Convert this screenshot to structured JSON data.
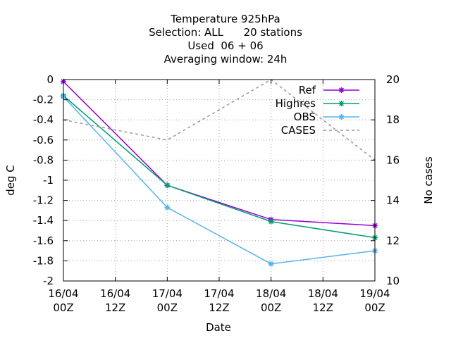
{
  "chart_data": {
    "type": "line",
    "title_lines": [
      "Temperature 925hPa",
      "Selection: ALL      20 stations",
      "Used  06 + 06",
      "Averaging window: 24h"
    ],
    "xlabel": "Date",
    "ylabel": "deg C",
    "y2label": "No cases",
    "x_ticks": [
      [
        "16/04",
        "00Z"
      ],
      [
        "16/04",
        "12Z"
      ],
      [
        "17/04",
        "00Z"
      ],
      [
        "17/04",
        "12Z"
      ],
      [
        "18/04",
        "00Z"
      ],
      [
        "18/04",
        "12Z"
      ],
      [
        "19/04",
        "00Z"
      ]
    ],
    "xlim": [
      0,
      6
    ],
    "ylim": [
      -2,
      0
    ],
    "y_ticks": [
      "0",
      "-0.2",
      "-0.4",
      "-0.6",
      "-0.8",
      "-1",
      "-1.2",
      "-1.4",
      "-1.6",
      "-1.8",
      "-2"
    ],
    "y2lim": [
      10,
      20
    ],
    "y2_ticks": [
      "20",
      "18",
      "16",
      "14",
      "12",
      "10"
    ],
    "grid": true,
    "legend_position": "top-right",
    "x": [
      0,
      2,
      4,
      6
    ],
    "series": [
      {
        "name": "Ref",
        "color": "#9400d3",
        "marker": "cross",
        "axis": "y",
        "style": "solid",
        "values": [
          -0.02,
          -1.05,
          -1.39,
          -1.45
        ]
      },
      {
        "name": "Highres",
        "color": "#009e73",
        "marker": "cross",
        "axis": "y",
        "style": "solid",
        "values": [
          -0.16,
          -1.05,
          -1.41,
          -1.57
        ]
      },
      {
        "name": "OBS",
        "color": "#56b4e9",
        "marker": "cross",
        "axis": "y",
        "style": "solid",
        "values": [
          -0.17,
          -1.27,
          -1.83,
          -1.7
        ]
      },
      {
        "name": "CASES",
        "color": "#999999",
        "marker": "none",
        "axis": "y2",
        "style": "dashed",
        "values": [
          18,
          17,
          20,
          16
        ]
      }
    ]
  }
}
